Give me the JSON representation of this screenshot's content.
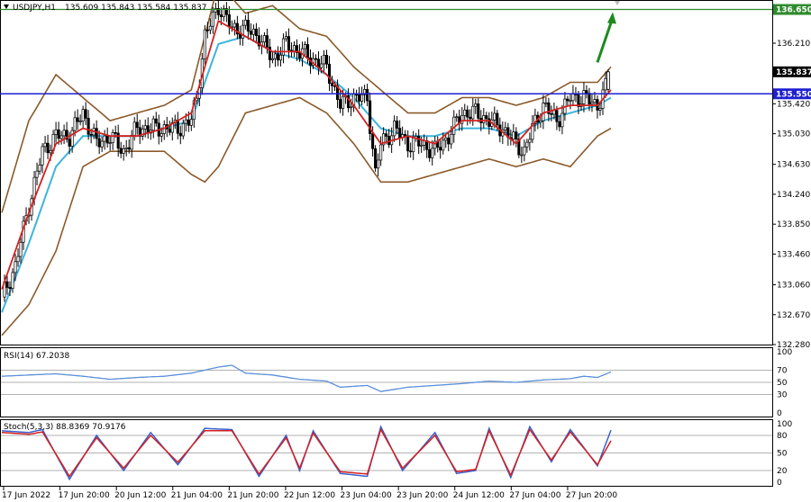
{
  "header": {
    "symbol": "USDJPY,H1",
    "ohlc": "135.609 135.843 135.584 135.837",
    "menu_icon": "triangle-down-icon"
  },
  "price_axis": {
    "ticks": [
      "136.650",
      "136.210",
      "135.837",
      "135.550",
      "135.420",
      "135.030",
      "134.630",
      "134.240",
      "133.850",
      "133.460",
      "133.060",
      "132.670",
      "132.280"
    ],
    "labels": {
      "resistance": "136.650",
      "last_price": "135.837",
      "support": "135.550"
    }
  },
  "time_axis": {
    "ticks": [
      "17 Jun 2022",
      "17 Jun 20:00",
      "20 Jun 12:00",
      "21 Jun 04:00",
      "21 Jun 20:00",
      "22 Jun 12:00",
      "23 Jun 04:00",
      "23 Jun 20:00",
      "24 Jun 12:00",
      "27 Jun 04:00",
      "27 Jun 20:00"
    ]
  },
  "rsi_panel": {
    "title": "RSI(14) 67.2038",
    "ticks": [
      "100",
      "70",
      "50",
      "30",
      "0"
    ]
  },
  "stoch_panel": {
    "title": "Stoch(5,3,3) 88.8369 70.9176",
    "ticks": [
      "100",
      "80",
      "50",
      "20",
      "0"
    ]
  },
  "colors": {
    "resistance_line": "#2e8b2e",
    "support_line": "#1f1fd0",
    "bollinger": "#8b5a2b",
    "ma_fast": "#d42020",
    "ma_slow": "#3cb4dc",
    "rsi_line": "#5a8fd8",
    "stoch_main": "#3a5fcd",
    "stoch_signal": "#d42020",
    "arrow": "#1e8a1e"
  },
  "chart_data": {
    "type": "candlestick",
    "timeframe": "H1",
    "y_range": [
      132.28,
      136.75
    ],
    "levels": {
      "resistance": 136.65,
      "support": 135.55,
      "last": 135.837
    },
    "price_path": [
      [
        0,
        132.9
      ],
      [
        5,
        133.3
      ],
      [
        10,
        134.1
      ],
      [
        15,
        134.8
      ],
      [
        20,
        135.0
      ],
      [
        25,
        135.0
      ],
      [
        30,
        135.3
      ],
      [
        35,
        134.9
      ],
      [
        40,
        135.0
      ],
      [
        45,
        134.8
      ],
      [
        50,
        135.1
      ],
      [
        55,
        135.1
      ],
      [
        60,
        135.1
      ],
      [
        65,
        135.1
      ],
      [
        70,
        135.2
      ],
      [
        72,
        135.5
      ],
      [
        75,
        136.3
      ],
      [
        80,
        136.7
      ],
      [
        85,
        136.4
      ],
      [
        90,
        136.4
      ],
      [
        95,
        136.3
      ],
      [
        100,
        136.0
      ],
      [
        105,
        136.2
      ],
      [
        110,
        136.1
      ],
      [
        115,
        136.0
      ],
      [
        120,
        135.9
      ],
      [
        125,
        135.4
      ],
      [
        130,
        135.5
      ],
      [
        135,
        135.5
      ],
      [
        138,
        134.5
      ],
      [
        140,
        134.9
      ],
      [
        145,
        135.1
      ],
      [
        150,
        134.9
      ],
      [
        155,
        134.9
      ],
      [
        160,
        134.8
      ],
      [
        165,
        135.0
      ],
      [
        170,
        135.3
      ],
      [
        175,
        135.3
      ],
      [
        180,
        135.2
      ],
      [
        185,
        135.1
      ],
      [
        190,
        134.9
      ],
      [
        193,
        134.8
      ],
      [
        196,
        135.1
      ],
      [
        200,
        135.4
      ],
      [
        205,
        135.2
      ],
      [
        210,
        135.5
      ],
      [
        215,
        135.5
      ],
      [
        220,
        135.4
      ],
      [
        224,
        135.7
      ]
    ],
    "rsi": [
      [
        0,
        60
      ],
      [
        10,
        62
      ],
      [
        20,
        64
      ],
      [
        30,
        60
      ],
      [
        40,
        55
      ],
      [
        50,
        58
      ],
      [
        60,
        60
      ],
      [
        70,
        65
      ],
      [
        80,
        75
      ],
      [
        85,
        78
      ],
      [
        90,
        65
      ],
      [
        100,
        62
      ],
      [
        110,
        55
      ],
      [
        120,
        52
      ],
      [
        125,
        42
      ],
      [
        135,
        45
      ],
      [
        140,
        35
      ],
      [
        150,
        42
      ],
      [
        160,
        45
      ],
      [
        170,
        48
      ],
      [
        180,
        52
      ],
      [
        190,
        50
      ],
      [
        200,
        54
      ],
      [
        210,
        56
      ],
      [
        215,
        60
      ],
      [
        220,
        58
      ],
      [
        225,
        67
      ]
    ],
    "stoch_main": [
      [
        0,
        88
      ],
      [
        10,
        85
      ],
      [
        15,
        90
      ],
      [
        25,
        5
      ],
      [
        35,
        80
      ],
      [
        45,
        20
      ],
      [
        55,
        85
      ],
      [
        65,
        30
      ],
      [
        75,
        92
      ],
      [
        85,
        90
      ],
      [
        95,
        10
      ],
      [
        105,
        80
      ],
      [
        110,
        20
      ],
      [
        115,
        88
      ],
      [
        125,
        15
      ],
      [
        135,
        10
      ],
      [
        140,
        95
      ],
      [
        148,
        20
      ],
      [
        160,
        85
      ],
      [
        168,
        15
      ],
      [
        175,
        20
      ],
      [
        180,
        92
      ],
      [
        188,
        8
      ],
      [
        195,
        95
      ],
      [
        203,
        35
      ],
      [
        210,
        90
      ],
      [
        220,
        28
      ],
      [
        225,
        89
      ]
    ],
    "stoch_signal": [
      [
        0,
        85
      ],
      [
        10,
        82
      ],
      [
        15,
        86
      ],
      [
        25,
        10
      ],
      [
        35,
        76
      ],
      [
        45,
        24
      ],
      [
        55,
        80
      ],
      [
        65,
        34
      ],
      [
        75,
        88
      ],
      [
        85,
        88
      ],
      [
        95,
        14
      ],
      [
        105,
        76
      ],
      [
        110,
        24
      ],
      [
        115,
        84
      ],
      [
        125,
        18
      ],
      [
        135,
        14
      ],
      [
        140,
        90
      ],
      [
        148,
        24
      ],
      [
        160,
        80
      ],
      [
        168,
        18
      ],
      [
        175,
        22
      ],
      [
        180,
        88
      ],
      [
        188,
        12
      ],
      [
        195,
        90
      ],
      [
        203,
        38
      ],
      [
        210,
        86
      ],
      [
        220,
        30
      ],
      [
        225,
        71
      ]
    ],
    "bollinger_upper": [
      [
        0,
        134.0
      ],
      [
        10,
        135.2
      ],
      [
        20,
        135.8
      ],
      [
        30,
        135.5
      ],
      [
        40,
        135.2
      ],
      [
        50,
        135.3
      ],
      [
        60,
        135.4
      ],
      [
        70,
        135.6
      ],
      [
        80,
        137.0
      ],
      [
        85,
        136.8
      ],
      [
        90,
        136.6
      ],
      [
        100,
        136.7
      ],
      [
        110,
        136.4
      ],
      [
        120,
        136.3
      ],
      [
        130,
        135.9
      ],
      [
        140,
        135.6
      ],
      [
        150,
        135.3
      ],
      [
        160,
        135.3
      ],
      [
        170,
        135.5
      ],
      [
        180,
        135.5
      ],
      [
        190,
        135.4
      ],
      [
        200,
        135.5
      ],
      [
        210,
        135.7
      ],
      [
        220,
        135.7
      ],
      [
        225,
        135.9
      ]
    ],
    "bollinger_lower": [
      [
        0,
        132.4
      ],
      [
        10,
        132.8
      ],
      [
        20,
        133.5
      ],
      [
        30,
        134.6
      ],
      [
        40,
        134.8
      ],
      [
        50,
        134.8
      ],
      [
        60,
        134.8
      ],
      [
        70,
        134.5
      ],
      [
        75,
        134.4
      ],
      [
        80,
        134.6
      ],
      [
        90,
        135.3
      ],
      [
        100,
        135.4
      ],
      [
        110,
        135.5
      ],
      [
        120,
        135.3
      ],
      [
        130,
        134.9
      ],
      [
        140,
        134.4
      ],
      [
        150,
        134.4
      ],
      [
        160,
        134.5
      ],
      [
        170,
        134.6
      ],
      [
        180,
        134.7
      ],
      [
        190,
        134.6
      ],
      [
        200,
        134.7
      ],
      [
        210,
        134.6
      ],
      [
        220,
        135.0
      ],
      [
        225,
        135.1
      ]
    ],
    "ma_fast": [
      [
        0,
        133.0
      ],
      [
        10,
        134.0
      ],
      [
        20,
        134.9
      ],
      [
        30,
        135.1
      ],
      [
        40,
        135.0
      ],
      [
        50,
        135.0
      ],
      [
        60,
        135.1
      ],
      [
        70,
        135.3
      ],
      [
        80,
        136.5
      ],
      [
        90,
        136.3
      ],
      [
        100,
        136.1
      ],
      [
        110,
        136.1
      ],
      [
        120,
        135.8
      ],
      [
        130,
        135.4
      ],
      [
        140,
        134.9
      ],
      [
        150,
        135.0
      ],
      [
        160,
        134.9
      ],
      [
        170,
        135.2
      ],
      [
        180,
        135.2
      ],
      [
        190,
        134.9
      ],
      [
        200,
        135.3
      ],
      [
        210,
        135.4
      ],
      [
        220,
        135.4
      ],
      [
        225,
        135.6
      ]
    ],
    "ma_slow": [
      [
        0,
        132.7
      ],
      [
        10,
        133.6
      ],
      [
        20,
        134.6
      ],
      [
        30,
        135.0
      ],
      [
        40,
        135.0
      ],
      [
        50,
        135.0
      ],
      [
        60,
        135.1
      ],
      [
        70,
        135.2
      ],
      [
        80,
        136.2
      ],
      [
        90,
        136.3
      ],
      [
        100,
        136.1
      ],
      [
        110,
        136.0
      ],
      [
        120,
        135.8
      ],
      [
        130,
        135.5
      ],
      [
        140,
        135.1
      ],
      [
        150,
        135.0
      ],
      [
        160,
        135.0
      ],
      [
        170,
        135.1
      ],
      [
        180,
        135.1
      ],
      [
        190,
        135.0
      ],
      [
        200,
        135.2
      ],
      [
        210,
        135.3
      ],
      [
        220,
        135.4
      ],
      [
        225,
        135.5
      ]
    ]
  }
}
